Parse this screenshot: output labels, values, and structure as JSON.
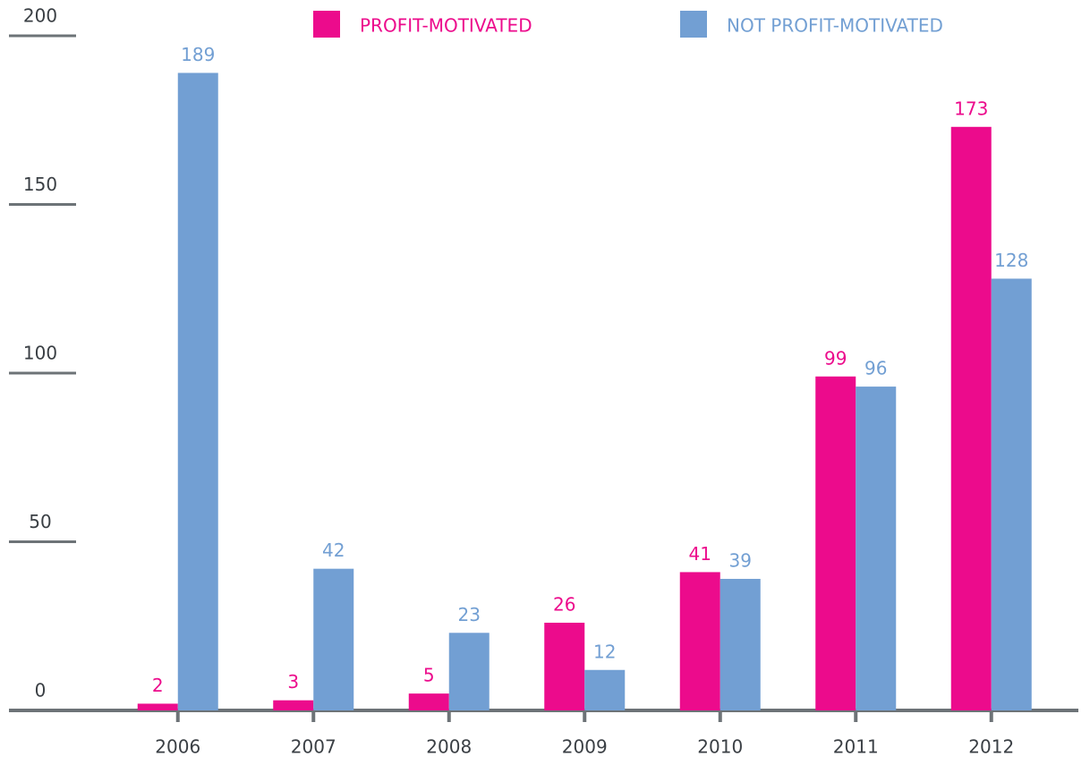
{
  "chart_data": {
    "type": "bar",
    "categories": [
      "2006",
      "2007",
      "2008",
      "2009",
      "2010",
      "2011",
      "2012"
    ],
    "series": [
      {
        "name": "PROFIT-MOTIVATED",
        "color": "#ec0b8c",
        "values": [
          2,
          3,
          5,
          26,
          41,
          99,
          173
        ]
      },
      {
        "name": "NOT PROFIT-MOTIVATED",
        "color": "#729fd3",
        "values": [
          189,
          42,
          23,
          12,
          39,
          96,
          128
        ]
      }
    ],
    "ylim": [
      0,
      200
    ],
    "yticks": [
      0,
      50,
      100,
      150,
      200
    ],
    "axis_color": "#6d7377"
  }
}
